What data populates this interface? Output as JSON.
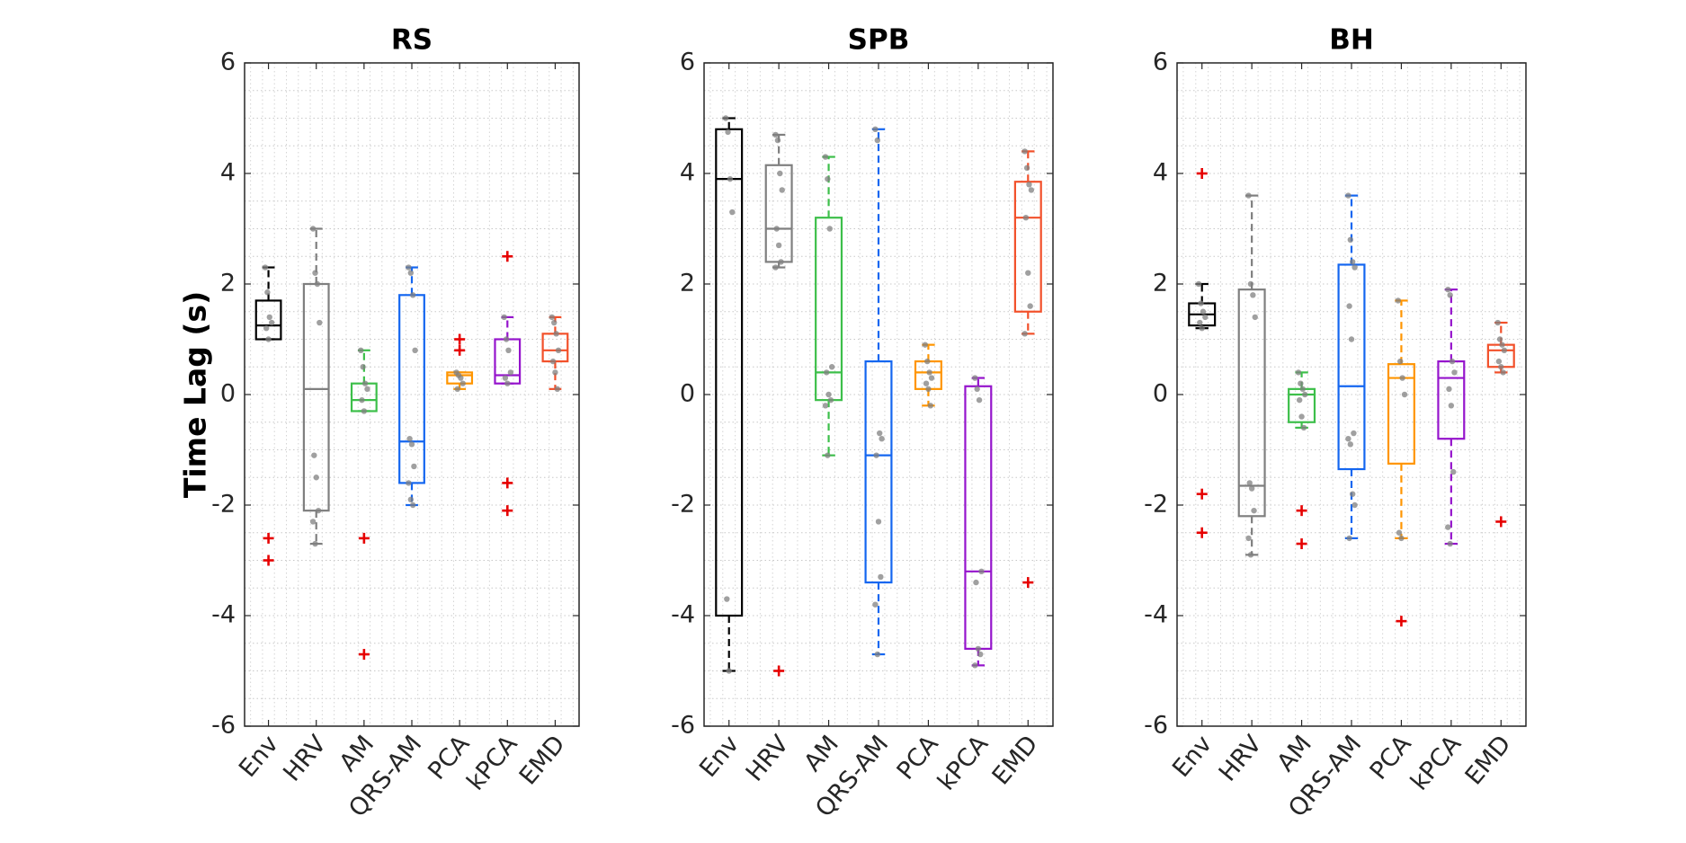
{
  "chart_data": {
    "type": "box",
    "ylabel": "Time Lag (s)",
    "ylim": [
      -6,
      6
    ],
    "yticks": [
      "6",
      "4",
      "2",
      "0",
      "-2",
      "-4",
      "-6"
    ],
    "ytick_values": [
      6,
      4,
      2,
      0,
      -2,
      -4,
      -6
    ],
    "grid": "minor dotted",
    "categories": [
      "Env",
      "HRV",
      "AM",
      "QRS-AM",
      "PCA",
      "kPCA",
      "EMD"
    ],
    "category_colors": [
      "#000000",
      "#7f7f7f",
      "#3dbf4a",
      "#1466f0",
      "#ff9500",
      "#9514cc",
      "#f2502a"
    ],
    "outlier_color": "#e60000",
    "point_color": "#808080",
    "panels": [
      {
        "title": "RS",
        "boxes": [
          {
            "q1": 1.0,
            "median": 1.25,
            "q3": 1.7,
            "whisker_low": 1.0,
            "whisker_high": 2.3,
            "outliers": [
              -2.6,
              -3.0
            ],
            "points": [
              2.3,
              1.85,
              1.4,
              1.3,
              1.2,
              1.0
            ]
          },
          {
            "q1": -2.1,
            "median": 0.1,
            "q3": 2.0,
            "whisker_low": -2.7,
            "whisker_high": 3.0,
            "outliers": [],
            "points": [
              3.0,
              2.2,
              2.0,
              1.3,
              -1.1,
              -1.5,
              -2.1,
              -2.3,
              -2.7
            ]
          },
          {
            "q1": -0.3,
            "median": -0.1,
            "q3": 0.2,
            "whisker_low": -0.3,
            "whisker_high": 0.8,
            "outliers": [
              -2.6,
              -4.7
            ],
            "points": [
              0.8,
              0.5,
              0.2,
              0.1,
              -0.1,
              -0.3
            ]
          },
          {
            "q1": -1.6,
            "median": -0.85,
            "q3": 1.8,
            "whisker_low": -2.0,
            "whisker_high": 2.3,
            "outliers": [],
            "points": [
              2.3,
              2.2,
              1.8,
              0.8,
              -0.8,
              -0.9,
              -1.3,
              -1.6,
              -1.9,
              -2.0
            ]
          },
          {
            "q1": 0.2,
            "median": 0.35,
            "q3": 0.4,
            "whisker_low": 0.1,
            "whisker_high": 0.4,
            "outliers": [
              1.0,
              0.8
            ],
            "points": [
              0.4,
              0.35,
              0.3,
              0.2,
              0.1
            ]
          },
          {
            "q1": 0.2,
            "median": 0.35,
            "q3": 1.0,
            "whisker_low": 0.2,
            "whisker_high": 1.4,
            "outliers": [
              2.5,
              -1.6,
              -2.1
            ],
            "points": [
              1.4,
              1.0,
              0.8,
              0.4,
              0.3,
              0.2
            ]
          },
          {
            "q1": 0.6,
            "median": 0.8,
            "q3": 1.1,
            "whisker_low": 0.1,
            "whisker_high": 1.4,
            "outliers": [],
            "points": [
              1.4,
              1.3,
              1.1,
              0.8,
              0.6,
              0.4,
              0.1
            ]
          }
        ]
      },
      {
        "title": "SPB",
        "boxes": [
          {
            "q1": -4.0,
            "median": 3.9,
            "q3": 4.8,
            "whisker_low": -5.0,
            "whisker_high": 5.0,
            "outliers": [],
            "points": [
              5.0,
              4.75,
              3.9,
              3.3,
              -3.7,
              -5.0
            ]
          },
          {
            "q1": 2.4,
            "median": 3.0,
            "q3": 4.15,
            "whisker_low": 2.3,
            "whisker_high": 4.7,
            "outliers": [
              -5.0
            ],
            "points": [
              4.7,
              4.6,
              4.0,
              3.7,
              3.0,
              2.7,
              2.4,
              2.3
            ]
          },
          {
            "q1": -0.1,
            "median": 0.4,
            "q3": 3.2,
            "whisker_low": -1.1,
            "whisker_high": 4.3,
            "outliers": [],
            "points": [
              4.3,
              3.9,
              3.0,
              0.5,
              0.4,
              0.0,
              -0.1,
              -0.2,
              -1.1
            ]
          },
          {
            "q1": -3.4,
            "median": -1.1,
            "q3": 0.6,
            "whisker_low": -4.7,
            "whisker_high": 4.8,
            "outliers": [],
            "points": [
              4.8,
              4.6,
              -0.7,
              -0.8,
              -1.1,
              -2.3,
              -3.3,
              -3.8,
              -4.7
            ]
          },
          {
            "q1": 0.1,
            "median": 0.4,
            "q3": 0.6,
            "whisker_low": -0.2,
            "whisker_high": 0.9,
            "outliers": [],
            "points": [
              0.9,
              0.6,
              0.4,
              0.3,
              0.2,
              0.1,
              -0.2
            ]
          },
          {
            "q1": -4.6,
            "median": -3.2,
            "q3": 0.15,
            "whisker_low": -4.9,
            "whisker_high": 0.3,
            "outliers": [],
            "points": [
              0.3,
              0.1,
              -0.1,
              -3.2,
              -3.4,
              -4.6,
              -4.7,
              -4.9
            ]
          },
          {
            "q1": 1.5,
            "median": 3.2,
            "q3": 3.85,
            "whisker_low": 1.1,
            "whisker_high": 4.4,
            "outliers": [
              -3.4
            ],
            "points": [
              4.4,
              4.1,
              3.8,
              3.7,
              3.2,
              2.2,
              1.6,
              1.1
            ]
          }
        ]
      },
      {
        "title": "BH",
        "boxes": [
          {
            "q1": 1.25,
            "median": 1.45,
            "q3": 1.65,
            "whisker_low": 1.2,
            "whisker_high": 2.0,
            "outliers": [
              4.0,
              -1.8,
              -2.5
            ],
            "points": [
              2.0,
              1.65,
              1.5,
              1.4,
              1.3,
              1.2
            ]
          },
          {
            "q1": -2.2,
            "median": -1.65,
            "q3": 1.9,
            "whisker_low": -2.9,
            "whisker_high": 3.6,
            "outliers": [],
            "points": [
              3.6,
              2.0,
              1.8,
              1.4,
              -1.6,
              -1.7,
              -2.1,
              -2.6,
              -2.9
            ]
          },
          {
            "q1": -0.5,
            "median": 0.0,
            "q3": 0.1,
            "whisker_low": -0.6,
            "whisker_high": 0.4,
            "outliers": [
              -2.1,
              -2.7
            ],
            "points": [
              0.4,
              0.2,
              0.1,
              0.0,
              -0.1,
              -0.4,
              -0.6
            ]
          },
          {
            "q1": -1.35,
            "median": 0.15,
            "q3": 2.35,
            "whisker_low": -2.6,
            "whisker_high": 3.6,
            "outliers": [],
            "points": [
              3.6,
              2.8,
              2.4,
              2.3,
              1.6,
              1.0,
              -0.7,
              -0.8,
              -0.9,
              -1.8,
              -2.0,
              -2.6
            ]
          },
          {
            "q1": -1.25,
            "median": 0.3,
            "q3": 0.55,
            "whisker_low": -2.6,
            "whisker_high": 1.7,
            "outliers": [
              -4.1
            ],
            "points": [
              1.7,
              0.6,
              0.3,
              0.0,
              -2.5,
              -2.6
            ]
          },
          {
            "q1": -0.8,
            "median": 0.3,
            "q3": 0.6,
            "whisker_low": -2.7,
            "whisker_high": 1.9,
            "outliers": [],
            "points": [
              1.9,
              1.8,
              0.6,
              0.4,
              0.1,
              -0.2,
              -1.4,
              -2.4,
              -2.7
            ]
          },
          {
            "q1": 0.5,
            "median": 0.8,
            "q3": 0.9,
            "whisker_low": 0.4,
            "whisker_high": 1.3,
            "outliers": [
              -2.3
            ],
            "points": [
              1.3,
              1.0,
              0.9,
              0.8,
              0.6,
              0.5,
              0.4
            ]
          }
        ]
      }
    ]
  }
}
